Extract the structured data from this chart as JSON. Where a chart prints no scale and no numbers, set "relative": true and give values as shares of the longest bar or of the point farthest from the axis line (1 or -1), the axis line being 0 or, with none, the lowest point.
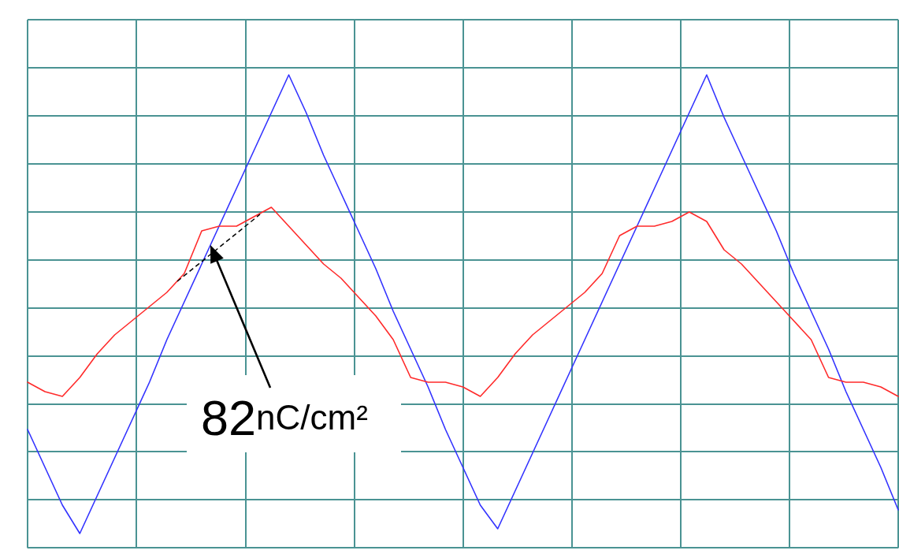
{
  "chart_data": {
    "type": "line",
    "relative": true,
    "grid": true,
    "categories": [
      null,
      null,
      null,
      null,
      null,
      null,
      null,
      null,
      null,
      null,
      null,
      null,
      null,
      null,
      null,
      null,
      null,
      null,
      null,
      null,
      null,
      null,
      null,
      null,
      null,
      null,
      null,
      null,
      null,
      null,
      null,
      null,
      null,
      null,
      null,
      null,
      null,
      null,
      null,
      null,
      null,
      null,
      null,
      null,
      null,
      null,
      null,
      null,
      null,
      null,
      null
    ],
    "series": [
      {
        "color": "#3333ff",
        "values": [
          0.25,
          0.17,
          0.09,
          0.03,
          0.11,
          0.19,
          0.27,
          0.35,
          0.44,
          0.52,
          0.6,
          0.68,
          0.76,
          0.84,
          0.92,
          1.0,
          0.92,
          0.83,
          0.75,
          0.67,
          0.59,
          0.5,
          0.42,
          0.34,
          0.25,
          0.17,
          0.09,
          0.04,
          0.12,
          0.2,
          0.28,
          0.36,
          0.44,
          0.52,
          0.6,
          0.68,
          0.76,
          0.84,
          0.92,
          1.0,
          0.91,
          0.83,
          0.75,
          0.67,
          0.58,
          0.5,
          0.42,
          0.33,
          0.25,
          0.17,
          0.08
        ]
      },
      {
        "color": "#ff2a2a",
        "values": [
          0.35,
          0.33,
          0.32,
          0.36,
          0.41,
          0.45,
          0.48,
          0.51,
          0.54,
          0.58,
          0.67,
          0.68,
          0.68,
          0.7,
          0.72,
          0.68,
          0.64,
          0.6,
          0.57,
          0.53,
          0.49,
          0.44,
          0.36,
          0.35,
          0.35,
          0.34,
          0.32,
          0.36,
          0.41,
          0.45,
          0.48,
          0.51,
          0.54,
          0.58,
          0.66,
          0.68,
          0.68,
          0.69,
          0.71,
          0.69,
          0.63,
          0.6,
          0.56,
          0.52,
          0.48,
          0.44,
          0.36,
          0.35,
          0.35,
          0.34,
          0.32
        ]
      }
    ],
    "annotations": [
      "82nC/cm²"
    ]
  }
}
